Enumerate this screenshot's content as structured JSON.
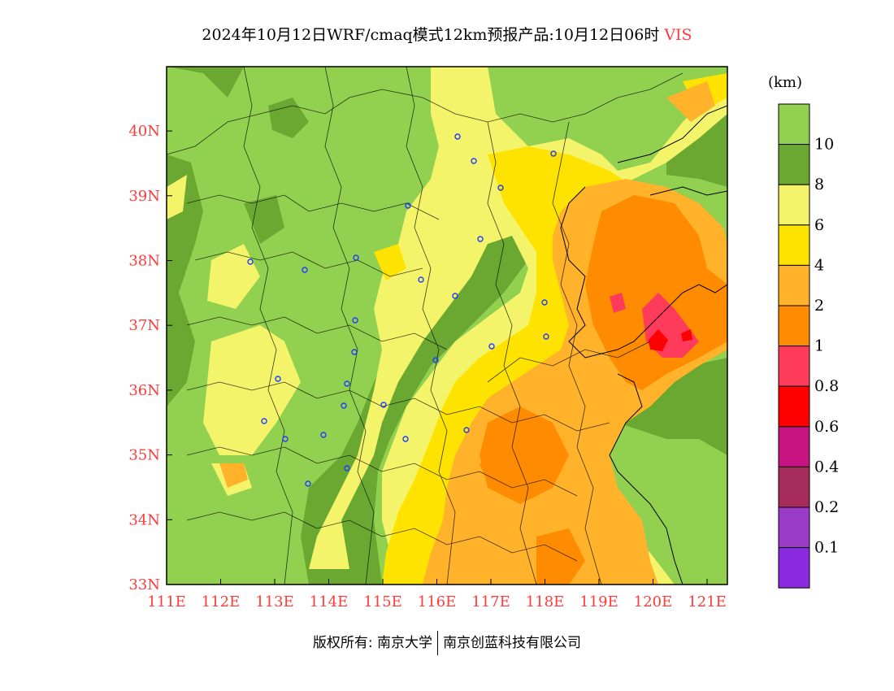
{
  "title": {
    "main": "2024年10月12日WRF/cmaq模式12km预报产品:10月12日06时",
    "variable": "VIS",
    "variable_color": "#ff3b3b"
  },
  "colorbar": {
    "unit": "(km)",
    "colors": [
      "#92d050",
      "#6aa832",
      "#f4f46a",
      "#ffe300",
      "#ffb22a",
      "#ff8c00",
      "#ff3b5c",
      "#ff0000",
      "#c81482",
      "#a62c5c",
      "#9a3cc8",
      "#8a2be2"
    ],
    "labels": [
      "10",
      "8",
      "6",
      "4",
      "2",
      "1",
      "0.8",
      "0.6",
      "0.4",
      "0.2",
      "0.1"
    ]
  },
  "axes": {
    "x_ticks": [
      "111E",
      "112E",
      "113E",
      "114E",
      "115E",
      "116E",
      "117E",
      "118E",
      "119E",
      "120E",
      "121E"
    ],
    "y_ticks": [
      "33N",
      "34N",
      "35N",
      "36N",
      "37N",
      "38N",
      "39N",
      "40N"
    ],
    "tick_color": "#ff3b3b"
  },
  "copyright": {
    "left": "版权所有: 南京大学",
    "right": "南京创蓝科技有限公司"
  }
}
